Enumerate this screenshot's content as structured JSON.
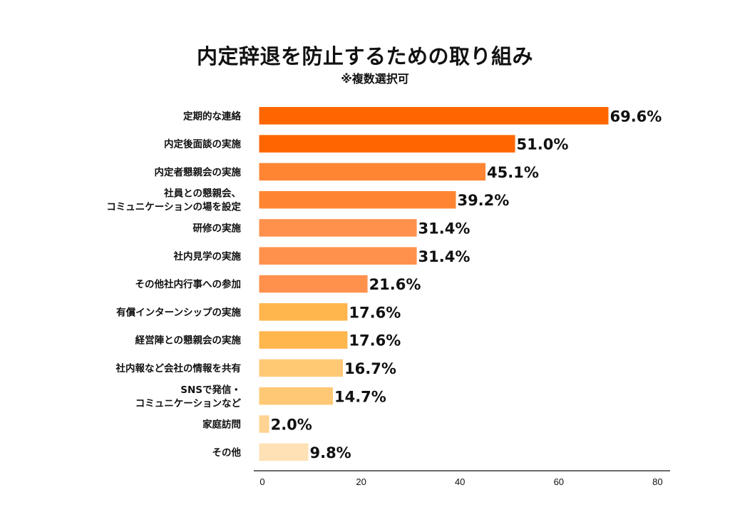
{
  "chart_data": {
    "type": "bar",
    "orientation": "horizontal",
    "title": "内定辞退を防止するための取り組み",
    "subtitle": "※複数選択可",
    "xlabel": "",
    "ylabel": "",
    "xlim": [
      0,
      80
    ],
    "x_ticks": [
      "0",
      "20",
      "40",
      "60",
      "80"
    ],
    "x_tick_values": [
      0,
      20,
      40,
      60,
      80
    ],
    "grid": false,
    "categories": [
      [
        "定期的な連絡"
      ],
      [
        "内定後面談の実施"
      ],
      [
        "内定者懇親会の実施"
      ],
      [
        "社員との懇親会、",
        "コミュニケーションの場を設定"
      ],
      [
        "研修の実施"
      ],
      [
        "社内見学の実施"
      ],
      [
        "その他社内行事への参加"
      ],
      [
        "有償インターンシップの実施"
      ],
      [
        "経営陣との懇親会の実施"
      ],
      [
        "社内報など会社の情報を共有"
      ],
      [
        "SNSで発信・",
        "コミュニケーションなど"
      ],
      [
        "家庭訪問"
      ],
      [
        "その他"
      ]
    ],
    "values": [
      69.6,
      51.0,
      45.1,
      39.2,
      31.4,
      31.4,
      21.6,
      17.6,
      17.6,
      16.7,
      14.7,
      2.0,
      9.8
    ],
    "value_labels": [
      "69.6%",
      "51.0%",
      "45.1%",
      "39.2%",
      "31.4%",
      "31.4%",
      "21.6%",
      "17.6%",
      "17.6%",
      "16.7%",
      "14.7%",
      "2.0%",
      "9.8%"
    ],
    "bar_colors": [
      "#FF6600",
      "#FF6600",
      "#FF8533",
      "#FF8533",
      "#FF914D",
      "#FF914D",
      "#FF914D",
      "#FFB64D",
      "#FFB64D",
      "#FFC875",
      "#FFC875",
      "#FFD493",
      "#FFE1B5"
    ],
    "axis_color": "#111111"
  }
}
